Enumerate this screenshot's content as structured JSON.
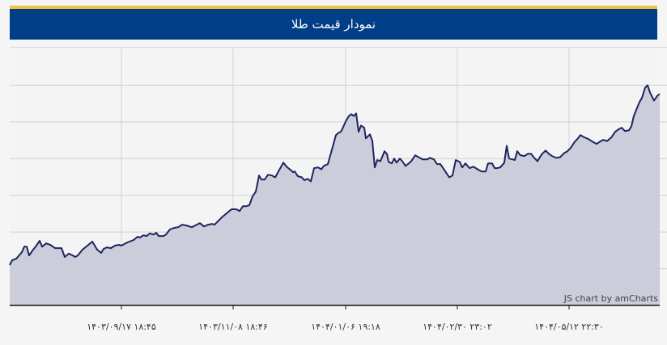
{
  "header": {
    "title": "نمودار قیمت طلا"
  },
  "chart_data": {
    "type": "area",
    "title": "نمودار قیمت طلا",
    "xlabel": "",
    "ylabel": "",
    "y_tick_labels_shown": false,
    "ylim": [
      0,
      70
    ],
    "y_grid_step": 10,
    "grid": true,
    "x_tick_labels": [
      "۱۴۰۳/۰۹/۱۷ ۱۸:۴۵",
      "۱۴۰۳/۱۱/۰۸ ۱۸:۴۶",
      "۱۴۰۴/۰۱/۰۶ ۱۹:۱۸",
      "۱۴۰۴/۰۲/۳۰ ۲۳:۰۲",
      "۱۴۰۴/۰۵/۱۲ ۲۲:۳۰"
    ],
    "values": [
      11.0,
      12.3,
      12.7,
      14.5,
      16.0,
      16.0,
      13.6,
      14.9,
      16.0,
      17.6,
      16.0,
      16.9,
      16.5,
      15.6,
      15.6,
      13.2,
      14.1,
      13.8,
      13.2,
      13.6,
      15.2,
      16.3,
      17.4,
      15.2,
      14.3,
      15.4,
      15.8,
      15.6,
      16.3,
      16.5,
      16.3,
      16.9,
      17.4,
      17.8,
      18.7,
      18.5,
      19.1,
      18.9,
      19.6,
      19.3,
      19.8,
      18.9,
      18.9,
      19.3,
      20.7,
      21.1,
      21.3,
      22.0,
      21.8,
      21.3,
      22.0,
      22.4,
      21.5,
      22.0,
      22.2,
      22.0,
      23.1,
      24.2,
      25.3,
      26.2,
      26.2,
      25.7,
      27.0,
      27.0,
      27.3,
      29.7,
      31.0,
      35.4,
      34.3,
      34.3,
      35.6,
      35.4,
      34.9,
      36.5,
      38.9,
      37.8,
      37.1,
      36.3,
      36.5,
      35.2,
      34.9,
      34.1,
      34.5,
      33.8,
      37.4,
      37.6,
      37.1,
      38.0,
      38.5,
      42.4,
      46.4,
      47.0,
      47.3,
      48.1,
      50.1,
      51.6,
      52.1,
      51.6,
      52.3,
      47.3,
      49.0,
      48.4,
      45.5,
      46.6,
      44.8,
      37.6,
      39.6,
      39.3,
      42.0,
      41.3,
      39.1,
      38.7,
      40.0,
      38.9,
      40.0,
      39.3,
      38.0,
      38.7,
      39.3,
      40.9,
      40.4,
      39.8,
      39.8,
      40.2,
      39.8,
      38.5,
      38.5,
      36.9,
      34.9,
      35.4,
      39.6,
      39.1,
      37.6,
      38.7,
      37.4,
      37.8,
      37.1,
      36.5,
      36.5,
      38.7,
      38.7,
      37.4,
      37.4,
      37.6,
      38.9,
      43.5,
      40.0,
      39.8,
      39.6,
      42.0,
      40.9,
      40.7,
      41.3,
      41.3,
      40.2,
      39.3,
      41.1,
      42.2,
      41.3,
      40.7,
      40.2,
      40.4,
      41.5,
      42.0,
      42.9,
      44.6,
      45.5,
      46.4,
      45.9,
      45.3,
      44.6,
      44.0,
      44.6,
      45.1,
      44.8,
      45.7,
      47.3,
      48.1,
      48.4,
      47.5,
      47.7,
      48.8,
      51.6,
      53.8,
      55.4,
      56.5,
      59.3,
      60.0,
      58.0,
      56.7,
      55.8,
      57.1,
      57.6
    ],
    "line_color": "#1f2461",
    "fill_color": "#cbcdda",
    "credit": "JS chart by amCharts"
  }
}
